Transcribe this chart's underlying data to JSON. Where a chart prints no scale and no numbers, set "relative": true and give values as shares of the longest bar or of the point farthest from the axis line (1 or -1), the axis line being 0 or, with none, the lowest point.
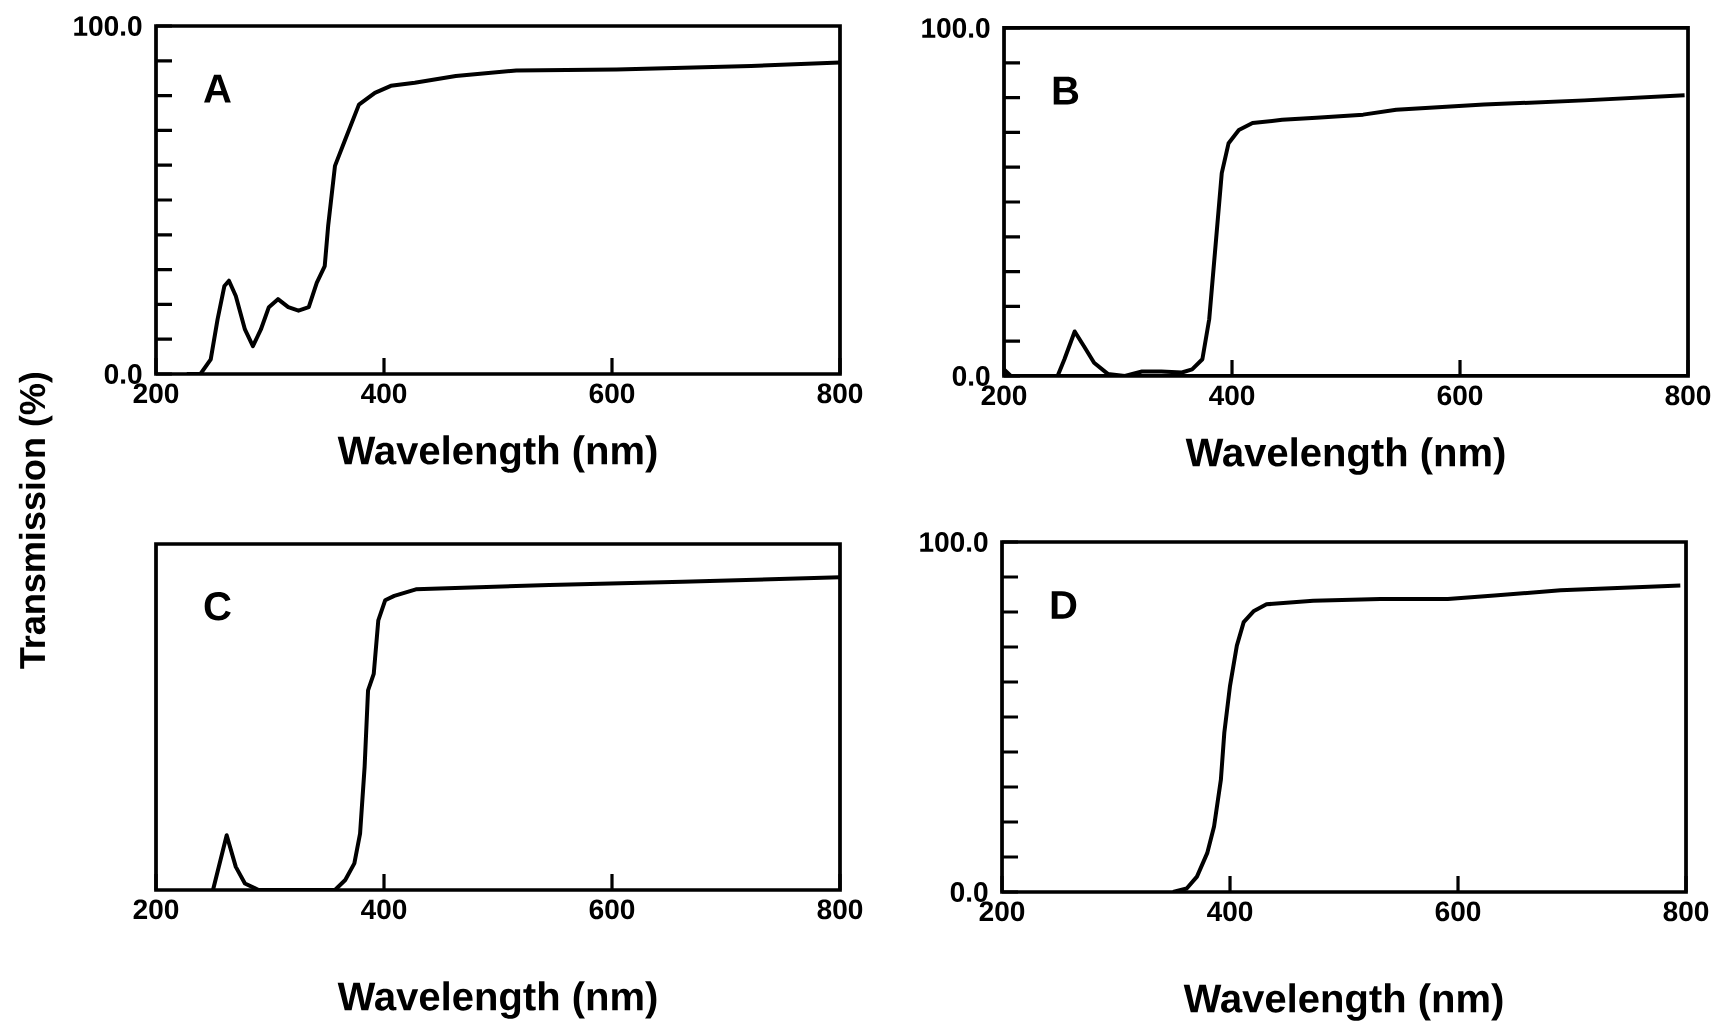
{
  "chart_data": [
    {
      "type": "line",
      "title": "A",
      "xlabel": "Wavelength (nm)",
      "ylabel": "Transmission (%)",
      "xlim": [
        200,
        800
      ],
      "xticks": [
        200,
        400,
        600,
        800
      ],
      "ylim": [
        0,
        100
      ],
      "yticks": [
        {
          "value": 0,
          "label": "0.0"
        },
        {
          "value": 10,
          "label": null
        },
        {
          "value": 20,
          "label": null
        },
        {
          "value": 30,
          "label": null
        },
        {
          "value": 40,
          "label": null
        },
        {
          "value": 50,
          "label": null
        },
        {
          "value": 60,
          "label": null
        },
        {
          "value": 70,
          "label": null
        },
        {
          "value": 80,
          "label": null
        },
        {
          "value": 90,
          "label": null
        },
        {
          "value": 100,
          "label": "100.0"
        }
      ],
      "series": [
        {
          "color": "#000000",
          "x": [
            227,
            239,
            248,
            254,
            260,
            264,
            270,
            278,
            285,
            292,
            299,
            307,
            316,
            325,
            334,
            341,
            348,
            351,
            357,
            366,
            378,
            392,
            406,
            427,
            463,
            516,
            604,
            722,
            800
          ],
          "values": [
            0,
            0,
            4.2,
            15.7,
            25.3,
            26.8,
            22.4,
            12.8,
            8.0,
            12.8,
            19.2,
            21.5,
            19.2,
            18.2,
            19.2,
            26.2,
            31.0,
            42.5,
            59.8,
            67.4,
            77.4,
            80.8,
            82.8,
            83.7,
            85.6,
            87.2,
            87.5,
            88.5,
            89.5
          ]
        }
      ]
    },
    {
      "type": "line",
      "title": "B",
      "xlabel": "Wavelength (nm)",
      "xlim": [
        200,
        800
      ],
      "xticks": [
        200,
        400,
        600,
        800
      ],
      "ylim": [
        0,
        100
      ],
      "yticks": [
        {
          "value": 0,
          "label": "0.0"
        },
        {
          "value": 10,
          "label": null
        },
        {
          "value": 20,
          "label": null
        },
        {
          "value": 30,
          "label": null
        },
        {
          "value": 40,
          "label": null
        },
        {
          "value": 50,
          "label": null
        },
        {
          "value": 60,
          "label": null
        },
        {
          "value": 70,
          "label": null
        },
        {
          "value": 80,
          "label": null
        },
        {
          "value": 90,
          "label": null
        },
        {
          "value": 100,
          "label": "100.0"
        }
      ],
      "series": [
        {
          "color": "#000000",
          "x": [
            200,
            206,
            247,
            253,
            262,
            270,
            279,
            291,
            306,
            321,
            338,
            356,
            365,
            374,
            380,
            385,
            391,
            397,
            406,
            418,
            444,
            474,
            515,
            544,
            621,
            709,
            797
          ],
          "values": [
            1.9,
            0,
            0,
            4.8,
            12.8,
            8.6,
            3.8,
            0.6,
            0,
            1.3,
            1.3,
            1.0,
            1.9,
            4.8,
            16.3,
            35.4,
            58.3,
            66.9,
            70.7,
            72.7,
            73.6,
            74.2,
            75.1,
            76.5,
            78.0,
            79.2,
            80.7
          ]
        }
      ]
    },
    {
      "type": "line",
      "title": "C",
      "xlabel": "Wavelength (nm)",
      "xlim": [
        200,
        800
      ],
      "xticks": [
        200,
        400,
        600,
        800
      ],
      "relative": true,
      "series": [
        {
          "color": "#000000",
          "x": [
            250,
            262,
            270,
            278,
            290,
            357,
            366,
            374,
            379,
            383,
            386,
            391,
            395,
            401,
            409,
            428,
            545,
            662,
            800
          ],
          "values": [
            0,
            0.175,
            0.074,
            0.021,
            0,
            0,
            0.032,
            0.085,
            0.18,
            0.394,
            0.638,
            0.691,
            0.862,
            0.926,
            0.94,
            0.961,
            0.975,
            0.985,
            1
          ]
        }
      ]
    },
    {
      "type": "line",
      "title": "D",
      "xlabel": "Wavelength (nm)",
      "xlim": [
        200,
        800
      ],
      "xticks": [
        200,
        400,
        600,
        800
      ],
      "ylim": [
        0,
        100
      ],
      "yticks": [
        {
          "value": 0,
          "label": "0.0"
        },
        {
          "value": 10,
          "label": null
        },
        {
          "value": 20,
          "label": null
        },
        {
          "value": 30,
          "label": null
        },
        {
          "value": 40,
          "label": null
        },
        {
          "value": 50,
          "label": null
        },
        {
          "value": 60,
          "label": null
        },
        {
          "value": 70,
          "label": null
        },
        {
          "value": 80,
          "label": null
        },
        {
          "value": 90,
          "label": null
        },
        {
          "value": 100,
          "label": "100.0"
        }
      ],
      "series": [
        {
          "color": "#000000",
          "x": [
            350,
            362,
            371,
            380,
            386,
            392,
            395,
            400,
            406,
            412,
            421,
            432,
            473,
            532,
            591,
            632,
            690,
            795
          ],
          "values": [
            0,
            1,
            4.4,
            11.1,
            18.7,
            32.1,
            45.5,
            58.9,
            70.4,
            77.1,
            80.3,
            82.2,
            83.2,
            83.7,
            83.7,
            84.7,
            86.2,
            87.6
          ]
        }
      ]
    }
  ]
}
